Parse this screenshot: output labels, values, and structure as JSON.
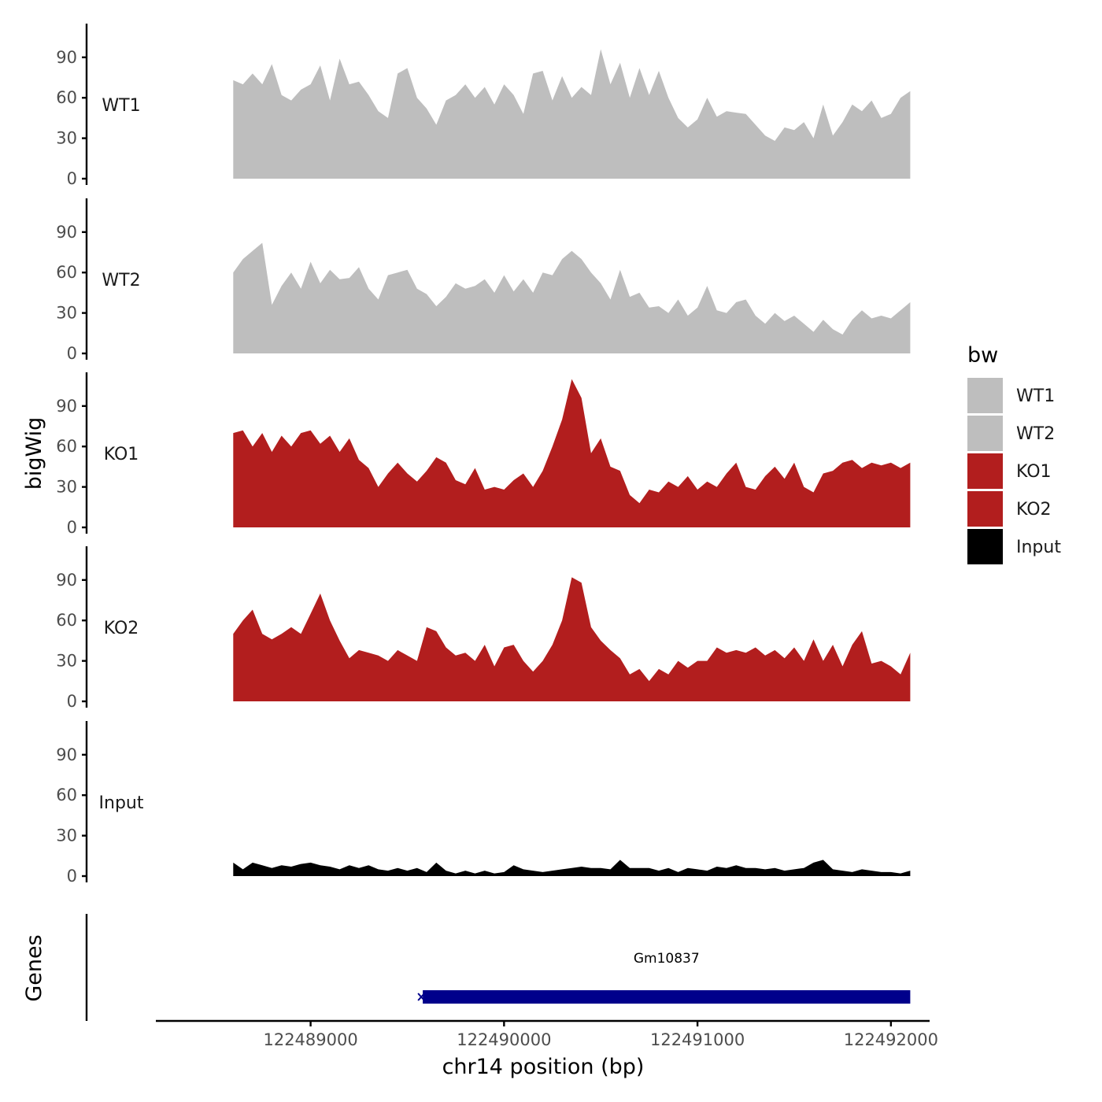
{
  "chart_data": {
    "type": "area",
    "xlabel": "chr14 position (bp)",
    "ylabel": "bigWig",
    "genes_label": "Genes",
    "x_range": [
      122488200,
      122492200
    ],
    "x_ticks": [
      122489000,
      122490000,
      122491000,
      122492000
    ],
    "x_tick_labels": [
      "122489000",
      "122490000",
      "122491000",
      "122492000"
    ],
    "y_range": [
      0,
      115
    ],
    "y_ticks": [
      0,
      30,
      60,
      90
    ],
    "y_tick_labels": [
      "0",
      "30",
      "60",
      "90"
    ],
    "grid": false,
    "legend": {
      "title": "bw",
      "position": "right",
      "entries": [
        {
          "label": "WT1",
          "color": "#bebebe"
        },
        {
          "label": "WT2",
          "color": "#bebebe"
        },
        {
          "label": "KO1",
          "color": "#b21e1e"
        },
        {
          "label": "KO2",
          "color": "#b21e1e"
        },
        {
          "label": "Input",
          "color": "#000000"
        }
      ]
    },
    "x": [
      122488600,
      122488650,
      122488700,
      122488750,
      122488800,
      122488850,
      122488900,
      122488950,
      122489000,
      122489050,
      122489100,
      122489150,
      122489200,
      122489250,
      122489300,
      122489350,
      122489400,
      122489450,
      122489500,
      122489550,
      122489600,
      122489650,
      122489700,
      122489750,
      122489800,
      122489850,
      122489900,
      122489950,
      122490000,
      122490050,
      122490100,
      122490150,
      122490200,
      122490250,
      122490300,
      122490350,
      122490400,
      122490450,
      122490500,
      122490550,
      122490600,
      122490650,
      122490700,
      122490750,
      122490800,
      122490850,
      122490900,
      122490950,
      122491000,
      122491050,
      122491100,
      122491150,
      122491200,
      122491250,
      122491300,
      122491350,
      122491400,
      122491450,
      122491500,
      122491550,
      122491600,
      122491650,
      122491700,
      122491750,
      122491800,
      122491850,
      122491900,
      122491950,
      122492000,
      122492050,
      122492100
    ],
    "series": [
      {
        "name": "WT1",
        "color": "#bebebe",
        "values": [
          73,
          70,
          78,
          70,
          85,
          62,
          58,
          66,
          70,
          84,
          58,
          89,
          70,
          72,
          62,
          50,
          45,
          78,
          82,
          60,
          52,
          40,
          58,
          62,
          70,
          60,
          68,
          55,
          70,
          62,
          48,
          78,
          80,
          58,
          76,
          60,
          68,
          62,
          96,
          70,
          86,
          60,
          82,
          62,
          80,
          60,
          45,
          38,
          44,
          60,
          46,
          50,
          49,
          48,
          40,
          32,
          28,
          38,
          36,
          42,
          30,
          55,
          32,
          42,
          55,
          50,
          58,
          45,
          48,
          60,
          65
        ]
      },
      {
        "name": "WT2",
        "color": "#bebebe",
        "values": [
          60,
          70,
          76,
          82,
          36,
          50,
          60,
          48,
          68,
          52,
          62,
          55,
          56,
          64,
          48,
          40,
          58,
          60,
          62,
          48,
          44,
          35,
          42,
          52,
          48,
          50,
          55,
          45,
          58,
          46,
          55,
          45,
          60,
          58,
          70,
          76,
          70,
          60,
          52,
          40,
          62,
          42,
          45,
          34,
          35,
          30,
          40,
          28,
          34,
          50,
          32,
          30,
          38,
          40,
          28,
          22,
          30,
          24,
          28,
          22,
          16,
          25,
          18,
          14,
          25,
          32,
          26,
          28,
          26,
          32,
          38
        ]
      },
      {
        "name": "KO1",
        "color": "#b21e1e",
        "values": [
          70,
          72,
          60,
          70,
          56,
          68,
          60,
          70,
          72,
          62,
          68,
          56,
          66,
          50,
          44,
          30,
          40,
          48,
          40,
          34,
          42,
          52,
          48,
          35,
          32,
          44,
          28,
          30,
          28,
          35,
          40,
          30,
          42,
          60,
          80,
          110,
          96,
          55,
          66,
          45,
          42,
          24,
          18,
          28,
          26,
          34,
          30,
          38,
          28,
          34,
          30,
          40,
          48,
          30,
          28,
          38,
          45,
          36,
          48,
          30,
          26,
          40,
          42,
          48,
          50,
          44,
          48,
          46,
          48,
          44,
          48
        ]
      },
      {
        "name": "KO2",
        "color": "#b21e1e",
        "values": [
          50,
          60,
          68,
          50,
          46,
          50,
          55,
          50,
          65,
          80,
          60,
          45,
          32,
          38,
          36,
          34,
          30,
          38,
          34,
          30,
          55,
          52,
          40,
          34,
          36,
          30,
          42,
          26,
          40,
          42,
          30,
          22,
          30,
          42,
          60,
          92,
          88,
          55,
          45,
          38,
          32,
          20,
          24,
          15,
          24,
          20,
          30,
          25,
          30,
          30,
          40,
          36,
          38,
          36,
          40,
          34,
          38,
          32,
          40,
          30,
          46,
          30,
          42,
          26,
          42,
          52,
          28,
          30,
          26,
          20,
          36
        ]
      },
      {
        "name": "Input",
        "color": "#000000",
        "values": [
          10,
          5,
          10,
          8,
          6,
          8,
          7,
          9,
          10,
          8,
          7,
          5,
          8,
          6,
          8,
          5,
          4,
          6,
          4,
          6,
          3,
          10,
          4,
          2,
          4,
          2,
          4,
          2,
          3,
          8,
          5,
          4,
          3,
          4,
          5,
          6,
          7,
          6,
          6,
          5,
          12,
          6,
          6,
          6,
          4,
          6,
          3,
          6,
          5,
          4,
          7,
          6,
          8,
          6,
          6,
          5,
          6,
          4,
          5,
          6,
          10,
          12,
          5,
          4,
          3,
          5,
          4,
          3,
          3,
          2,
          4
        ]
      }
    ],
    "genes": [
      {
        "name": "Gm10837",
        "start": 122489580,
        "end": 122492100,
        "color": "#00008b"
      }
    ]
  }
}
